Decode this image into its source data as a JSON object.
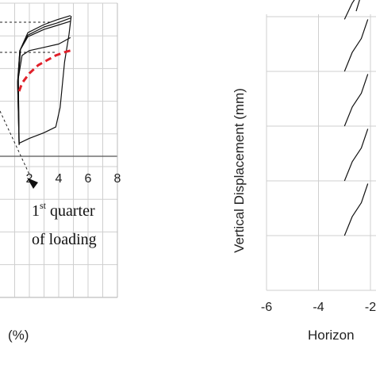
{
  "chart_data": [
    {
      "type": "line",
      "title": "",
      "xlabel": "(%)",
      "ylabel": "",
      "xlim": [
        0,
        8
      ],
      "x_ticks": [
        "2",
        "4",
        "6",
        "8"
      ],
      "grid": true,
      "series": [
        {
          "style": "black",
          "x": [
            1.3,
            2.0,
            3.0,
            3.8,
            4.1,
            4.4,
            4.7,
            4.85,
            4.8
          ],
          "y": [
            0.8,
            1.1,
            1.45,
            1.8,
            3.0,
            5.8,
            7.5,
            8.6,
            8.6
          ]
        },
        {
          "style": "black",
          "x": [
            1.3,
            1.2,
            1.35,
            1.9,
            3.0,
            3.9,
            4.8
          ],
          "y": [
            0.7,
            4.5,
            6.5,
            7.35,
            7.8,
            8.05,
            8.3
          ]
        },
        {
          "style": "black",
          "x": [
            1.3,
            1.2,
            1.35,
            1.9,
            3.0,
            3.9,
            4.8
          ],
          "y": [
            0.7,
            4.6,
            6.5,
            7.45,
            7.95,
            8.2,
            8.5
          ]
        },
        {
          "style": "black",
          "x": [
            1.3,
            1.25,
            1.4,
            1.9,
            3.0,
            3.9,
            4.8
          ],
          "y": [
            0.75,
            4.7,
            6.6,
            7.6,
            8.1,
            8.4,
            8.65
          ]
        },
        {
          "style": "black",
          "x": [
            1.3,
            1.25,
            1.5,
            2.0,
            3.0,
            4.0,
            4.4,
            4.8
          ],
          "y": [
            0.75,
            4.8,
            6.2,
            6.5,
            6.7,
            6.9,
            7.1,
            7.3
          ]
        },
        {
          "style": "red-dashed",
          "x": [
            1.3,
            1.5,
            2.0,
            2.6,
            3.2,
            3.8,
            4.4,
            4.8
          ],
          "y": [
            4.0,
            4.5,
            5.1,
            5.6,
            5.9,
            6.2,
            6.4,
            6.5
          ]
        }
      ],
      "annotations": [
        "1st quarter",
        "of loading"
      ]
    },
    {
      "type": "line",
      "title": "",
      "xlabel": "Horizon",
      "ylabel": "Vertical Displacement (mm)",
      "xlim": [
        -6,
        -2
      ],
      "x_ticks": [
        "-6",
        "-4",
        "-2"
      ],
      "grid": true,
      "series": [
        {
          "style": "black",
          "x": [
            -3.0,
            -2.7,
            -2.35,
            -2.1,
            -2.55
          ],
          "y": [
            4.95,
            5.25,
            5.5,
            5.8,
            5.1
          ]
        },
        {
          "style": "black",
          "x": [
            -3.0,
            -2.7,
            -2.35,
            -2.1
          ],
          "y": [
            4.0,
            4.35,
            4.6,
            4.95
          ]
        },
        {
          "style": "black",
          "x": [
            -3.0,
            -2.7,
            -2.35,
            -2.1
          ],
          "y": [
            3.0,
            3.35,
            3.6,
            3.95
          ]
        },
        {
          "style": "black",
          "x": [
            -3.0,
            -2.7,
            -2.35,
            -2.1
          ],
          "y": [
            2.0,
            2.35,
            2.6,
            2.95
          ]
        },
        {
          "style": "black",
          "x": [
            -3.0,
            -2.7,
            -2.35,
            -2.1
          ],
          "y": [
            1.0,
            1.35,
            1.6,
            1.95
          ]
        }
      ]
    }
  ],
  "annotation_sup": "st",
  "annotation_line1_rest": " quarter",
  "annotation_num": "1",
  "annotation_line2": "of loading"
}
